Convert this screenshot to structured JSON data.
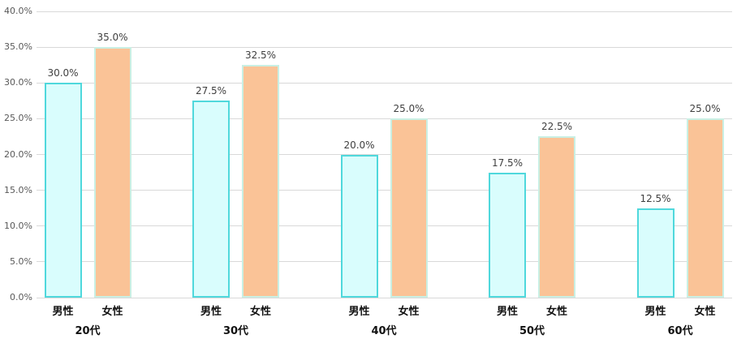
{
  "chart_data": {
    "type": "bar",
    "title": "",
    "xlabel": "",
    "ylabel": "",
    "categories": [
      "20代",
      "30代",
      "40代",
      "50代",
      "60代"
    ],
    "series": [
      {
        "name": "男性",
        "values": [
          30.0,
          27.5,
          20.0,
          17.5,
          12.5
        ]
      },
      {
        "name": "女性",
        "values": [
          35.0,
          32.5,
          25.0,
          22.5,
          25.0
        ]
      }
    ],
    "value_labels": [
      [
        "30.0%",
        "35.0%"
      ],
      [
        "27.5%",
        "32.5%"
      ],
      [
        "20.0%",
        "25.0%"
      ],
      [
        "17.5%",
        "22.5%"
      ],
      [
        "12.5%",
        "25.0%"
      ]
    ],
    "ylim": [
      0,
      40
    ],
    "ytick_values": [
      0,
      5,
      10,
      15,
      20,
      25,
      30,
      35,
      40
    ],
    "ytick_labels": [
      "0.0%",
      "5.0%",
      "10.0%",
      "15.0%",
      "20.0%",
      "25.0%",
      "30.0%",
      "35.0%",
      "40.0%"
    ],
    "grid": true,
    "legend_position": "none",
    "colors": {
      "male_fill": "#d9fdfd",
      "male_border": "#4fd8dc",
      "female_fill": "#fac397",
      "female_border": "#c9efe3",
      "gridline": "#d9d9d9",
      "ytick_text": "#595959",
      "value_label_text": "#404040",
      "category_text": "#000000",
      "background": "#ffffff"
    }
  }
}
